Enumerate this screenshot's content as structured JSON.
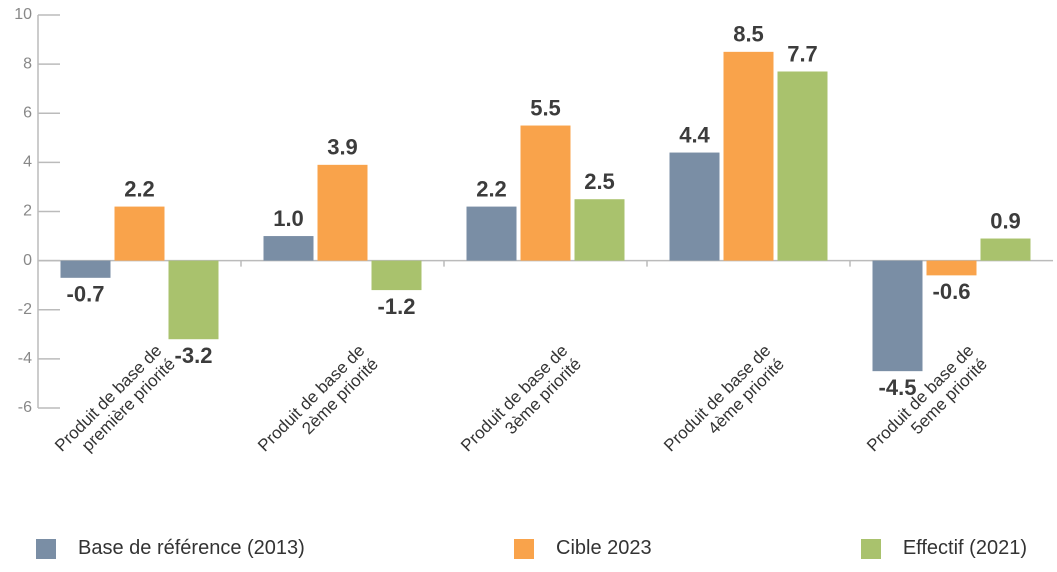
{
  "chart_data": {
    "type": "bar",
    "categories": [
      "Produit de base de\npremière priorité",
      "Produit de base de\n2ème priorité",
      "Produit de base de\n3ème priorité",
      "Produit de base de\n4ème priorité",
      "Produit de base de\n5eme priorité"
    ],
    "series": [
      {
        "name": "Base de référence (2013)",
        "color": "#7a8ea5",
        "values": [
          -0.7,
          1.0,
          2.2,
          4.4,
          -4.5
        ],
        "value_labels": [
          "-0.7",
          "1.0",
          "2.2",
          "4.4",
          "-4.5"
        ]
      },
      {
        "name": "Cible 2023",
        "color": "#f9a34b",
        "values": [
          2.2,
          3.9,
          5.5,
          8.5,
          -0.6
        ],
        "value_labels": [
          "2.2",
          "3.9",
          "5.5",
          "8.5",
          "-0.6"
        ]
      },
      {
        "name": "Effectif (2021)",
        "color": "#a9c26d",
        "values": [
          -3.2,
          -1.2,
          2.5,
          7.7,
          0.9
        ],
        "value_labels": [
          "-3.2",
          "-1.2",
          "2.5",
          "7.7",
          "0.9"
        ]
      }
    ],
    "ylim": [
      -6,
      10
    ],
    "yticks": [
      -6,
      -4,
      -2,
      0,
      2,
      4,
      6,
      8,
      10
    ]
  }
}
